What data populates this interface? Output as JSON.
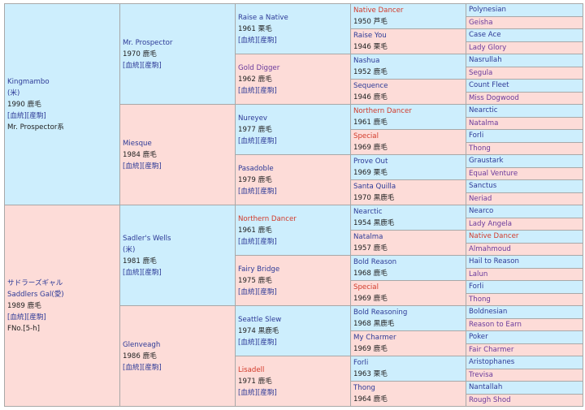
{
  "gen1": [
    {
      "name": "Kingmambo",
      "lines": [
        "(米)",
        "1990 鹿毛",
        "[血統][産駒]",
        "Mr. Prospector系"
      ],
      "c": ""
    },
    {
      "name": "サドラーズギャル",
      "lines": [
        "Saddlers Gal(愛)",
        "1989 鹿毛",
        "[血統][産駒]",
        "FNo.[5-h]"
      ],
      "c": ""
    }
  ],
  "gen2": [
    {
      "name": "Mr. Prospector",
      "lines": [
        "1970 鹿毛",
        "[血統][産駒]"
      ],
      "c": ""
    },
    {
      "name": "Miesque",
      "lines": [
        "1984 鹿毛",
        "[血統][産駒]"
      ],
      "c": ""
    },
    {
      "name": "Sadler's Wells",
      "lines": [
        "(米)",
        "1981 鹿毛",
        "[血統][産駒]"
      ],
      "c": ""
    },
    {
      "name": "Glenveagh",
      "lines": [
        "1986 鹿毛",
        "[血統][産駒]"
      ],
      "c": ""
    }
  ],
  "gen3": [
    {
      "name": "Raise a Native",
      "lines": [
        "1961 栗毛",
        "[血統][産駒]"
      ],
      "c": ""
    },
    {
      "name": "Gold Digger",
      "lines": [
        "1962 鹿毛",
        "[血統][産駒]"
      ],
      "c": "vis"
    },
    {
      "name": "Nureyev",
      "lines": [
        "1977 鹿毛",
        "[血統][産駒]"
      ],
      "c": ""
    },
    {
      "name": "Pasadoble",
      "lines": [
        "1979 鹿毛",
        "[血統][産駒]"
      ],
      "c": ""
    },
    {
      "name": "Northern Dancer",
      "lines": [
        "1961 鹿毛",
        "[血統][産駒]"
      ],
      "c": "red"
    },
    {
      "name": "Fairy Bridge",
      "lines": [
        "1975 鹿毛",
        "[血統][産駒]"
      ],
      "c": ""
    },
    {
      "name": "Seattle Slew",
      "lines": [
        "1974 黒鹿毛",
        "[血統][産駒]"
      ],
      "c": ""
    },
    {
      "name": "Lisadell",
      "lines": [
        "1971 鹿毛",
        "[血統][産駒]"
      ],
      "c": "red"
    }
  ],
  "gen4": [
    {
      "name": "Native Dancer",
      "lines": [
        "1950 芦毛"
      ],
      "c": "red"
    },
    {
      "name": "Raise You",
      "lines": [
        "1946 栗毛"
      ],
      "c": ""
    },
    {
      "name": "Nashua",
      "lines": [
        "1952 鹿毛"
      ],
      "c": ""
    },
    {
      "name": "Sequence",
      "lines": [
        "1946 鹿毛"
      ],
      "c": ""
    },
    {
      "name": "Northern Dancer",
      "lines": [
        "1961 鹿毛"
      ],
      "c": "red"
    },
    {
      "name": "Special",
      "lines": [
        "1969 鹿毛"
      ],
      "c": "red"
    },
    {
      "name": "Prove Out",
      "lines": [
        "1969 栗毛"
      ],
      "c": ""
    },
    {
      "name": "Santa Quilla",
      "lines": [
        "1970 黒鹿毛"
      ],
      "c": ""
    },
    {
      "name": "Nearctic",
      "lines": [
        "1954 黒鹿毛"
      ],
      "c": ""
    },
    {
      "name": "Natalma",
      "lines": [
        "1957 鹿毛"
      ],
      "c": ""
    },
    {
      "name": "Bold Reason",
      "lines": [
        "1968 鹿毛"
      ],
      "c": ""
    },
    {
      "name": "Special",
      "lines": [
        "1969 鹿毛"
      ],
      "c": "red"
    },
    {
      "name": "Bold Reasoning",
      "lines": [
        "1968 黒鹿毛"
      ],
      "c": ""
    },
    {
      "name": "My Charmer",
      "lines": [
        "1969 鹿毛"
      ],
      "c": ""
    },
    {
      "name": "Forli",
      "lines": [
        "1963 栗毛"
      ],
      "c": ""
    },
    {
      "name": "Thong",
      "lines": [
        "1964 鹿毛"
      ],
      "c": ""
    }
  ],
  "gen5": [
    {
      "name": "Polynesian",
      "lines": [],
      "c": ""
    },
    {
      "name": "Geisha",
      "lines": [],
      "c": "vis"
    },
    {
      "name": "Case Ace",
      "lines": [],
      "c": ""
    },
    {
      "name": "Lady Glory",
      "lines": [],
      "c": "vis"
    },
    {
      "name": "Nasrullah",
      "lines": [],
      "c": ""
    },
    {
      "name": "Segula",
      "lines": [],
      "c": "vis"
    },
    {
      "name": "Count Fleet",
      "lines": [],
      "c": ""
    },
    {
      "name": "Miss Dogwood",
      "lines": [],
      "c": "vis"
    },
    {
      "name": "Nearctic",
      "lines": [],
      "c": ""
    },
    {
      "name": "Natalma",
      "lines": [],
      "c": "vis"
    },
    {
      "name": "Forli",
      "lines": [],
      "c": ""
    },
    {
      "name": "Thong",
      "lines": [],
      "c": "vis"
    },
    {
      "name": "Graustark",
      "lines": [],
      "c": ""
    },
    {
      "name": "Equal Venture",
      "lines": [],
      "c": "vis"
    },
    {
      "name": "Sanctus",
      "lines": [],
      "c": ""
    },
    {
      "name": "Neriad",
      "lines": [],
      "c": "vis"
    },
    {
      "name": "Nearco",
      "lines": [],
      "c": ""
    },
    {
      "name": "Lady Angela",
      "lines": [],
      "c": "vis"
    },
    {
      "name": "Native Dancer",
      "lines": [],
      "c": "red"
    },
    {
      "name": "Almahmoud",
      "lines": [],
      "c": "vis"
    },
    {
      "name": "Hail to Reason",
      "lines": [],
      "c": ""
    },
    {
      "name": "Lalun",
      "lines": [],
      "c": "vis"
    },
    {
      "name": "Forli",
      "lines": [],
      "c": ""
    },
    {
      "name": "Thong",
      "lines": [],
      "c": "vis"
    },
    {
      "name": "Boldnesian",
      "lines": [],
      "c": ""
    },
    {
      "name": "Reason to Earn",
      "lines": [],
      "c": "vis"
    },
    {
      "name": "Poker",
      "lines": [],
      "c": ""
    },
    {
      "name": "Fair Charmer",
      "lines": [],
      "c": "vis"
    },
    {
      "name": "Aristophanes",
      "lines": [],
      "c": ""
    },
    {
      "name": "Trevisa",
      "lines": [],
      "c": "vis"
    },
    {
      "name": "Nantallah",
      "lines": [],
      "c": ""
    },
    {
      "name": "Rough Shod",
      "lines": [],
      "c": "vis"
    }
  ]
}
